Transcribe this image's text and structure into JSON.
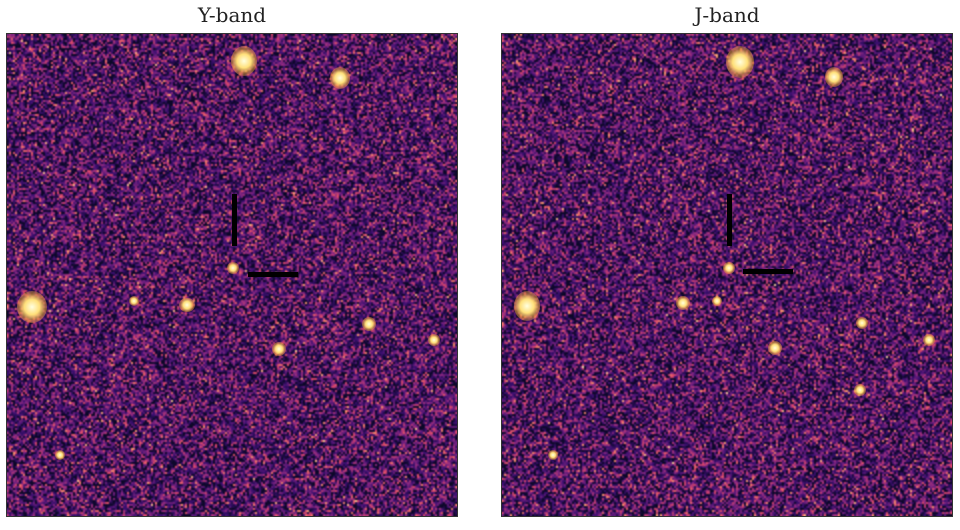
{
  "panels": [
    {
      "title": "Y-band"
    },
    {
      "title": "J-band"
    }
  ],
  "colors": {
    "background": "#ffffff",
    "colormap": [
      "#0d0829",
      "#3b0f70",
      "#8c2981",
      "#de4968",
      "#fe9f6d",
      "#fcfdbf"
    ],
    "marker": "#000000"
  }
}
